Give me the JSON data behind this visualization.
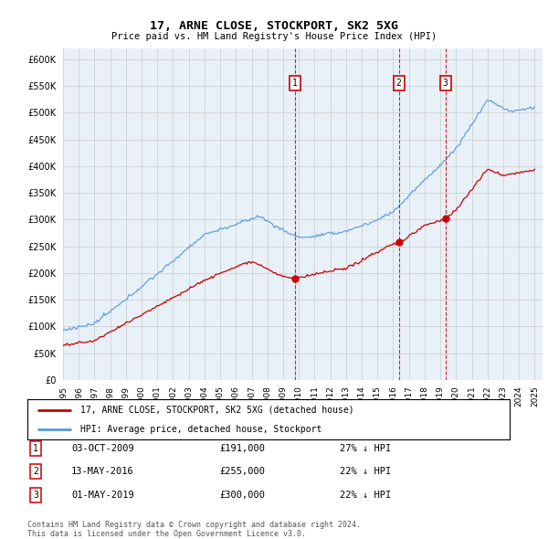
{
  "title": "17, ARNE CLOSE, STOCKPORT, SK2 5XG",
  "subtitle": "Price paid vs. HM Land Registry's House Price Index (HPI)",
  "ylim": [
    0,
    620000
  ],
  "yticks": [
    0,
    50000,
    100000,
    150000,
    200000,
    250000,
    300000,
    350000,
    400000,
    450000,
    500000,
    550000,
    600000
  ],
  "background_color": "#ffffff",
  "plot_bg_color": "#e8f0f8",
  "grid_color": "#cccccc",
  "hpi_color": "#5599dd",
  "price_color": "#cc0000",
  "vline_color": "#cc0000",
  "transactions": [
    {
      "num": 1,
      "date": "03-OCT-2009",
      "price": 191000,
      "hpi_pct": "27% ↓ HPI",
      "x_year": 2009.75
    },
    {
      "num": 2,
      "date": "13-MAY-2016",
      "price": 255000,
      "hpi_pct": "22% ↓ HPI",
      "x_year": 2016.36
    },
    {
      "num": 3,
      "date": "01-MAY-2019",
      "price": 300000,
      "hpi_pct": "22% ↓ HPI",
      "x_year": 2019.33
    }
  ],
  "legend_label_price": "17, ARNE CLOSE, STOCKPORT, SK2 5XG (detached house)",
  "legend_label_hpi": "HPI: Average price, detached house, Stockport",
  "footer1": "Contains HM Land Registry data © Crown copyright and database right 2024.",
  "footer2": "This data is licensed under the Open Government Licence v3.0.",
  "xlim_start": 1995,
  "xlim_end": 2025.5
}
